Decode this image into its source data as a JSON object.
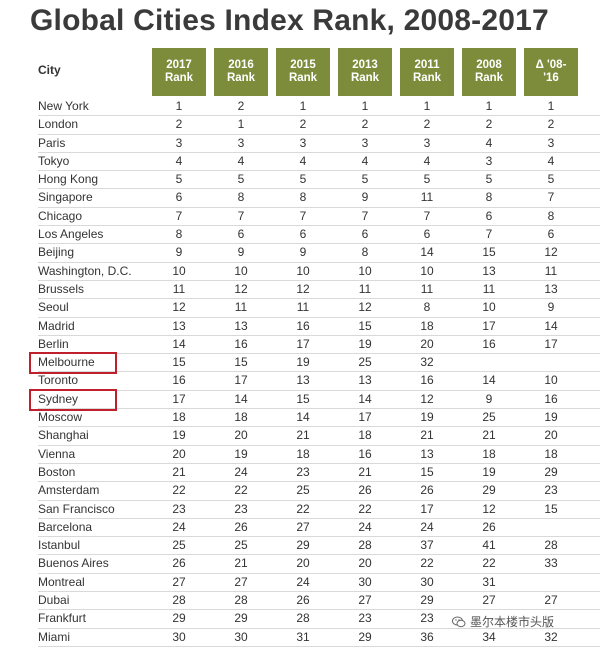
{
  "title": "Global Cities Index Rank, 2008-2017",
  "watermark_text": "墨尔本楼市头版",
  "highlight_color": "#c0202b",
  "header_color": "#7d8c3a",
  "chart_data": {
    "type": "table",
    "title": "Global Cities Index Rank, 2008-2017",
    "row_header": "City",
    "columns": [
      {
        "line1": "2017",
        "line2": "Rank"
      },
      {
        "line1": "2016",
        "line2": "Rank"
      },
      {
        "line1": "2015",
        "line2": "Rank"
      },
      {
        "line1": "2013",
        "line2": "Rank"
      },
      {
        "line1": "2011",
        "line2": "Rank"
      },
      {
        "line1": "2008",
        "line2": "Rank"
      },
      {
        "line1": "Δ '08-",
        "line2": "'16"
      }
    ],
    "highlighted_rows": [
      "Melbourne",
      "Sydney"
    ],
    "rows": [
      {
        "city": "New York",
        "values": [
          "1",
          "2",
          "1",
          "1",
          "1",
          "1",
          "1"
        ]
      },
      {
        "city": "London",
        "values": [
          "2",
          "1",
          "2",
          "2",
          "2",
          "2",
          "2"
        ]
      },
      {
        "city": "Paris",
        "values": [
          "3",
          "3",
          "3",
          "3",
          "3",
          "4",
          "3"
        ]
      },
      {
        "city": "Tokyo",
        "values": [
          "4",
          "4",
          "4",
          "4",
          "4",
          "3",
          "4"
        ]
      },
      {
        "city": "Hong Kong",
        "values": [
          "5",
          "5",
          "5",
          "5",
          "5",
          "5",
          "5"
        ]
      },
      {
        "city": "Singapore",
        "values": [
          "6",
          "8",
          "8",
          "9",
          "11",
          "8",
          "7"
        ]
      },
      {
        "city": "Chicago",
        "values": [
          "7",
          "7",
          "7",
          "7",
          "7",
          "6",
          "8"
        ]
      },
      {
        "city": "Los Angeles",
        "values": [
          "8",
          "6",
          "6",
          "6",
          "6",
          "7",
          "6"
        ]
      },
      {
        "city": "Beijing",
        "values": [
          "9",
          "9",
          "9",
          "8",
          "14",
          "15",
          "12"
        ]
      },
      {
        "city": "Washington, D.C.",
        "values": [
          "10",
          "10",
          "10",
          "10",
          "10",
          "13",
          "11"
        ]
      },
      {
        "city": "Brussels",
        "values": [
          "11",
          "12",
          "12",
          "11",
          "11",
          "11",
          "13"
        ]
      },
      {
        "city": "Seoul",
        "values": [
          "12",
          "11",
          "11",
          "12",
          "8",
          "10",
          "9"
        ]
      },
      {
        "city": "Madrid",
        "values": [
          "13",
          "13",
          "16",
          "15",
          "18",
          "17",
          "14"
        ]
      },
      {
        "city": "Berlin",
        "values": [
          "14",
          "16",
          "17",
          "19",
          "20",
          "16",
          "17"
        ]
      },
      {
        "city": "Melbourne",
        "values": [
          "15",
          "15",
          "19",
          "25",
          "32",
          "",
          ""
        ]
      },
      {
        "city": "Toronto",
        "values": [
          "16",
          "17",
          "13",
          "13",
          "16",
          "14",
          "10"
        ]
      },
      {
        "city": "Sydney",
        "values": [
          "17",
          "14",
          "15",
          "14",
          "12",
          "9",
          "16"
        ]
      },
      {
        "city": "Moscow",
        "values": [
          "18",
          "18",
          "14",
          "17",
          "19",
          "25",
          "19"
        ]
      },
      {
        "city": "Shanghai",
        "values": [
          "19",
          "20",
          "21",
          "18",
          "21",
          "21",
          "20"
        ]
      },
      {
        "city": "Vienna",
        "values": [
          "20",
          "19",
          "18",
          "16",
          "13",
          "18",
          "18"
        ]
      },
      {
        "city": "Boston",
        "values": [
          "21",
          "24",
          "23",
          "21",
          "15",
          "19",
          "29"
        ]
      },
      {
        "city": "Amsterdam",
        "values": [
          "22",
          "22",
          "25",
          "26",
          "26",
          "29",
          "23"
        ]
      },
      {
        "city": "San Francisco",
        "values": [
          "23",
          "23",
          "22",
          "22",
          "17",
          "12",
          "15"
        ]
      },
      {
        "city": "Barcelona",
        "values": [
          "24",
          "26",
          "27",
          "24",
          "24",
          "26",
          ""
        ]
      },
      {
        "city": "Istanbul",
        "values": [
          "25",
          "25",
          "29",
          "28",
          "37",
          "41",
          "28"
        ]
      },
      {
        "city": "Buenos Aires",
        "values": [
          "26",
          "21",
          "20",
          "20",
          "22",
          "22",
          "33"
        ]
      },
      {
        "city": "Montreal",
        "values": [
          "27",
          "27",
          "24",
          "30",
          "30",
          "31",
          ""
        ]
      },
      {
        "city": "Dubai",
        "values": [
          "28",
          "28",
          "26",
          "27",
          "29",
          "27",
          "27"
        ]
      },
      {
        "city": "Frankfurt",
        "values": [
          "29",
          "29",
          "28",
          "23",
          "23",
          "",
          ""
        ]
      },
      {
        "city": "Miami",
        "values": [
          "30",
          "30",
          "31",
          "29",
          "36",
          "34",
          "32"
        ]
      }
    ]
  }
}
